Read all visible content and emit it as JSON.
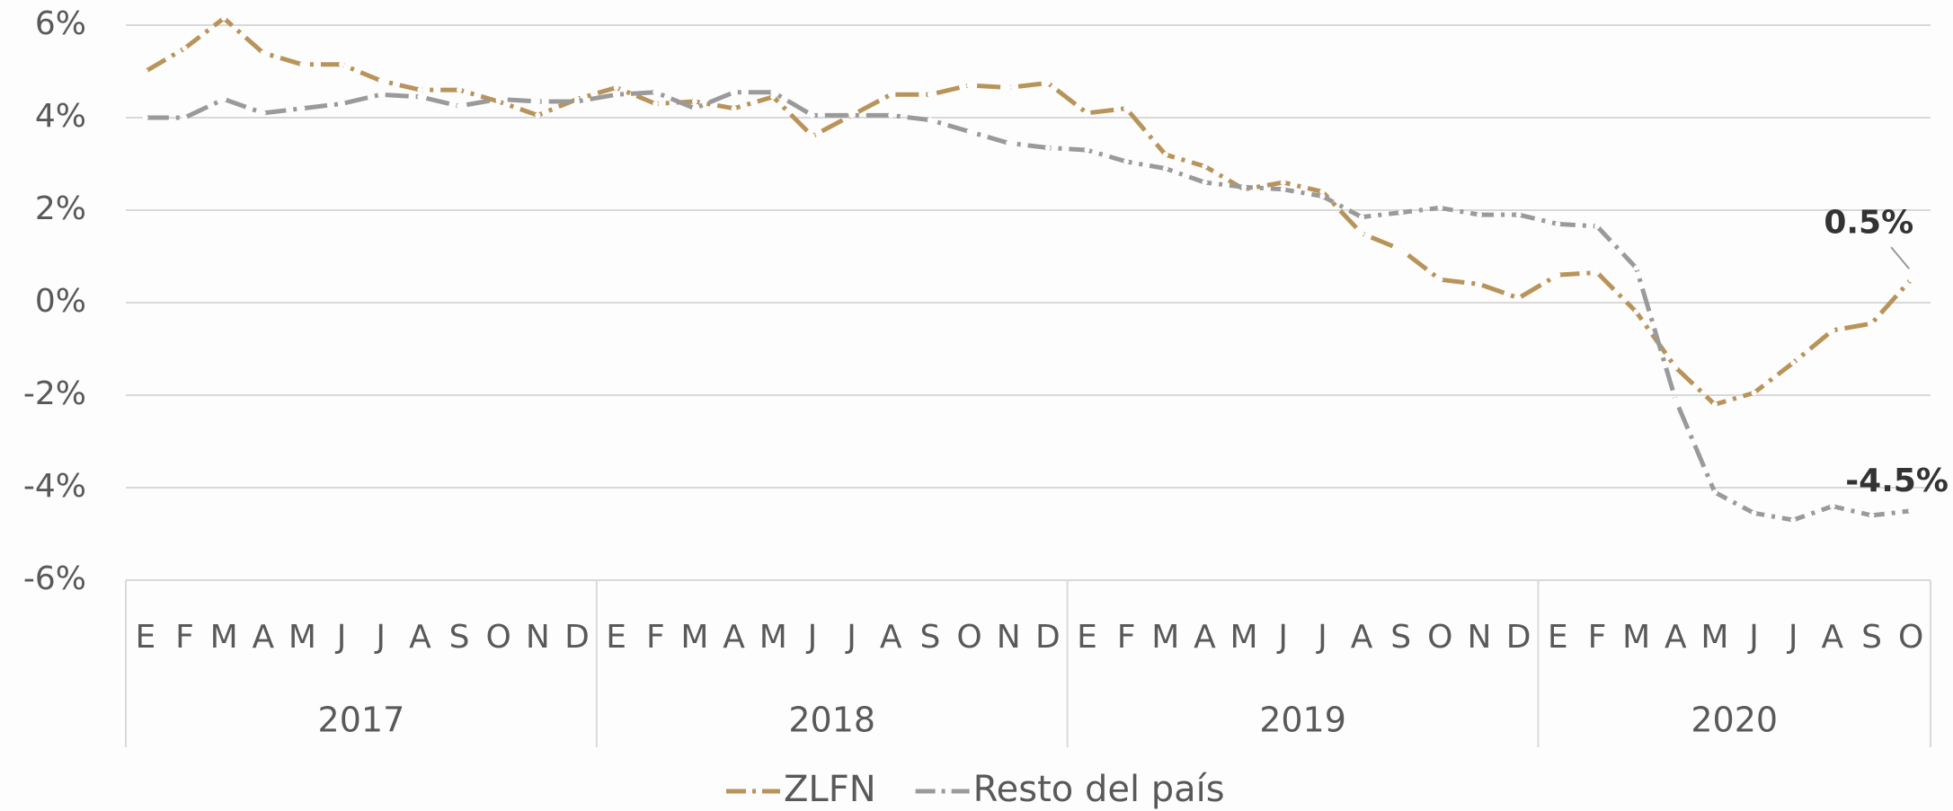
{
  "chart_data": {
    "type": "line",
    "categories": [
      "E",
      "F",
      "M",
      "A",
      "M",
      "J",
      "J",
      "A",
      "S",
      "O",
      "N",
      "D",
      "E",
      "F",
      "M",
      "A",
      "M",
      "J",
      "J",
      "A",
      "S",
      "O",
      "N",
      "D",
      "E",
      "F",
      "M",
      "A",
      "M",
      "J",
      "J",
      "A",
      "S",
      "O",
      "N",
      "D",
      "E",
      "F",
      "M",
      "A",
      "M",
      "J",
      "J",
      "A",
      "S",
      "O"
    ],
    "years": [
      {
        "label": "2017",
        "months": 12
      },
      {
        "label": "2018",
        "months": 12
      },
      {
        "label": "2019",
        "months": 12
      },
      {
        "label": "2020",
        "months": 10
      }
    ],
    "series": [
      {
        "name": "ZLFN",
        "color": "#b8945a",
        "values": [
          5.0,
          5.5,
          6.15,
          5.4,
          5.15,
          5.15,
          4.8,
          4.6,
          4.6,
          4.35,
          4.05,
          4.4,
          4.65,
          4.3,
          4.35,
          4.2,
          4.45,
          3.6,
          4.05,
          4.5,
          4.5,
          4.7,
          4.65,
          4.75,
          4.1,
          4.2,
          3.2,
          2.95,
          2.45,
          2.6,
          2.4,
          1.5,
          1.15,
          0.5,
          0.4,
          0.1,
          0.6,
          0.65,
          -0.2,
          -1.4,
          -2.2,
          -1.95,
          -1.3,
          -0.6,
          -0.45,
          0.5
        ],
        "value_labels": [
          null,
          null,
          null,
          null,
          null,
          null,
          null,
          null,
          null,
          null,
          null,
          null,
          null,
          null,
          null,
          null,
          null,
          null,
          null,
          null,
          null,
          null,
          null,
          null,
          null,
          null,
          null,
          null,
          null,
          null,
          null,
          null,
          null,
          null,
          null,
          null,
          null,
          null,
          null,
          null,
          null,
          null,
          null,
          null,
          null,
          "0.5%"
        ]
      },
      {
        "name": "Resto del país",
        "color": "#9a9a9a",
        "values": [
          4.0,
          4.0,
          4.4,
          4.1,
          4.2,
          4.3,
          4.5,
          4.45,
          4.25,
          4.4,
          4.35,
          4.35,
          4.5,
          4.55,
          4.2,
          4.55,
          4.55,
          4.05,
          4.05,
          4.05,
          3.95,
          3.7,
          3.45,
          3.35,
          3.3,
          3.05,
          2.9,
          2.6,
          2.5,
          2.45,
          2.3,
          1.85,
          1.95,
          2.05,
          1.9,
          1.9,
          1.7,
          1.65,
          0.75,
          -2.1,
          -4.1,
          -4.55,
          -4.7,
          -4.4,
          -4.6,
          -4.5
        ],
        "value_labels": [
          null,
          null,
          null,
          null,
          null,
          null,
          null,
          null,
          null,
          null,
          null,
          null,
          null,
          null,
          null,
          null,
          null,
          null,
          null,
          null,
          null,
          null,
          null,
          null,
          null,
          null,
          null,
          null,
          null,
          null,
          null,
          null,
          null,
          null,
          null,
          null,
          null,
          null,
          null,
          null,
          null,
          null,
          null,
          null,
          null,
          "-4.5%"
        ]
      }
    ],
    "ylim": [
      -6,
      6
    ],
    "yticks": [
      {
        "value": -6,
        "label": "-6%"
      },
      {
        "value": -4,
        "label": "-4%"
      },
      {
        "value": -2,
        "label": "-2%"
      },
      {
        "value": 0,
        "label": "0%"
      },
      {
        "value": 2,
        "label": "2%"
      },
      {
        "value": 4,
        "label": "4%"
      },
      {
        "value": 6,
        "label": "6%"
      }
    ],
    "grid": true,
    "legend": "bottom"
  }
}
